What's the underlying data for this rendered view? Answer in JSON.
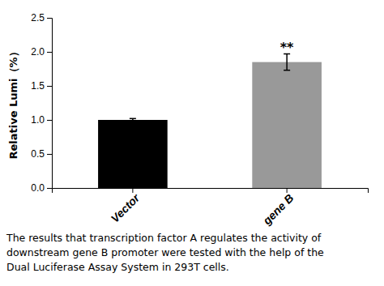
{
  "chart_data": {
    "type": "bar",
    "ylabel": "Relative Lumi（%）",
    "categories": [
      "Vector",
      "gene B"
    ],
    "values": [
      1.0,
      1.85
    ],
    "errors": [
      0.02,
      0.12
    ],
    "colors": [
      "#000000",
      "#999999"
    ],
    "ylim": [
      0,
      2.5
    ],
    "yticks": [
      {
        "value": 0,
        "label": "0.0"
      },
      0.5,
      {
        "value": 1,
        "label": "1.0"
      },
      1.5,
      {
        "value": 2,
        "label": "2.0"
      },
      2.5
    ],
    "annotations": [
      {
        "text": "**",
        "category": "gene B"
      }
    ],
    "caption": "The results that transcription factor A regulates the activity of\ndownstream gene B promoter were tested with the help of the\nDual Luciferase Assay System in 293T cells."
  }
}
